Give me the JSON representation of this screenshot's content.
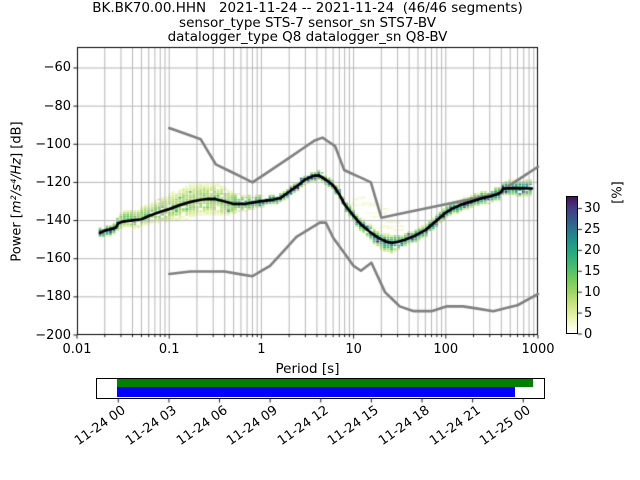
{
  "chart_data": {
    "type": "heatmap",
    "description": "Probabilistic power spectral density (PPSD) of seismic channel, histogram colored by probability percentage, with Peterson NHNM/NLNM noise model curves and mode line, plus data coverage timeline",
    "title": "BK.BK70.00.HHN   2021-11-24 -- 2021-11-24  (46/46 segments)",
    "subtitle_lines": [
      "sensor_type STS-7 sensor_sn STS7-BV",
      "datalogger_type Q8 datalogger_sn Q8-BV"
    ],
    "xlabel": "Period [s]",
    "ylabel_parts": [
      "Power [",
      "m²/s⁴/Hz",
      "] [dB]"
    ],
    "xscale": "log",
    "xlim": [
      0.01,
      1000
    ],
    "ylim": [
      -200,
      -49
    ],
    "grid": true,
    "xtick_values": [
      0.01,
      0.1,
      1,
      10,
      100,
      1000
    ],
    "xtick_labels": [
      "0.01",
      "0.1",
      "1",
      "10",
      "100",
      "1000"
    ],
    "ytick_values": [
      -60,
      -80,
      -100,
      -120,
      -140,
      -160,
      -180,
      -200
    ],
    "ytick_labels": [
      "−60",
      "−80",
      "−100",
      "−120",
      "−140",
      "−160",
      "−180",
      "−200"
    ],
    "colorbar": {
      "unit_label": "[%]",
      "tick_values": [
        0,
        5,
        10,
        15,
        20,
        25,
        30
      ],
      "tick_labels": [
        "0",
        "5",
        "10",
        "15",
        "20",
        "25",
        "30"
      ],
      "vmin": 0,
      "vmax": 33,
      "gradient_stops": [
        {
          "t": 0.0,
          "c": "#ffffff"
        },
        {
          "t": 0.05,
          "c": "#f8fbdd"
        },
        {
          "t": 0.12,
          "c": "#e7f3ab"
        },
        {
          "t": 0.2,
          "c": "#cbe687"
        },
        {
          "t": 0.3,
          "c": "#9fd566"
        },
        {
          "t": 0.4,
          "c": "#6ecb5c"
        },
        {
          "t": 0.5,
          "c": "#41bb72"
        },
        {
          "t": 0.6,
          "c": "#26a784"
        },
        {
          "t": 0.68,
          "c": "#21918c"
        },
        {
          "t": 0.76,
          "c": "#2b758e"
        },
        {
          "t": 0.84,
          "c": "#35588c"
        },
        {
          "t": 0.92,
          "c": "#433a83"
        },
        {
          "t": 1.0,
          "c": "#46115b"
        }
      ]
    },
    "series": {
      "mode_line": {
        "name": "PSD mode",
        "color": "#000000",
        "points": [
          [
            0.0178,
            -146.4
          ],
          [
            0.02,
            -145.3
          ],
          [
            0.0225,
            -144.7
          ],
          [
            0.025,
            -144.1
          ],
          [
            0.0265,
            -143.6
          ],
          [
            0.028,
            -141.4
          ],
          [
            0.031,
            -140.6
          ],
          [
            0.04,
            -139.9
          ],
          [
            0.05,
            -139.3
          ],
          [
            0.06,
            -137.6
          ],
          [
            0.08,
            -135.4
          ],
          [
            0.1,
            -134.0
          ],
          [
            0.13,
            -131.9
          ],
          [
            0.17,
            -130.2
          ],
          [
            0.22,
            -129.1
          ],
          [
            0.27,
            -128.6
          ],
          [
            0.32,
            -128.8
          ],
          [
            0.4,
            -130.0
          ],
          [
            0.5,
            -131.3
          ],
          [
            0.65,
            -131.3
          ],
          [
            0.8,
            -130.6
          ],
          [
            1.0,
            -129.8
          ],
          [
            1.3,
            -129.2
          ],
          [
            1.6,
            -128.2
          ],
          [
            2.0,
            -124.9
          ],
          [
            2.5,
            -121.5
          ],
          [
            3.0,
            -118.4
          ],
          [
            3.6,
            -116.7
          ],
          [
            4.2,
            -116.3
          ],
          [
            5.0,
            -118.6
          ],
          [
            6.0,
            -121.5
          ],
          [
            7.0,
            -126.3
          ],
          [
            8.0,
            -131.6
          ],
          [
            10.0,
            -137.6
          ],
          [
            12.0,
            -142.0
          ],
          [
            15.0,
            -145.9
          ],
          [
            18.0,
            -148.7
          ],
          [
            22.0,
            -150.9
          ],
          [
            26.0,
            -151.7
          ],
          [
            30.0,
            -151.2
          ],
          [
            36.0,
            -150.1
          ],
          [
            45.0,
            -148.2
          ],
          [
            60.0,
            -145.0
          ],
          [
            80.0,
            -139.9
          ],
          [
            100.0,
            -135.8
          ],
          [
            120.0,
            -133.5
          ],
          [
            150.0,
            -131.5
          ],
          [
            200.0,
            -129.7
          ],
          [
            250.0,
            -128.2
          ],
          [
            300.0,
            -127.4
          ],
          [
            360.0,
            -126.2
          ],
          [
            400.0,
            -125.1
          ],
          [
            418.0,
            -123.3
          ],
          [
            500.0,
            -123.1
          ],
          [
            600.0,
            -123.0
          ],
          [
            700.0,
            -123.1
          ],
          [
            860.0,
            -123.2
          ]
        ]
      },
      "nhnm": {
        "name": "Peterson New High Noise Model",
        "color": "#808080",
        "points": [
          [
            0.1,
            -91.5
          ],
          [
            0.15,
            -94.5
          ],
          [
            0.22,
            -97.4
          ],
          [
            0.26,
            -103.3
          ],
          [
            0.32,
            -110.5
          ],
          [
            0.45,
            -114.0
          ],
          [
            0.6,
            -117.0
          ],
          [
            0.8,
            -120.0
          ],
          [
            1.2,
            -114.3
          ],
          [
            2.0,
            -107.1
          ],
          [
            3.0,
            -101.3
          ],
          [
            3.8,
            -98.0
          ],
          [
            4.6,
            -96.5
          ],
          [
            5.4,
            -98.8
          ],
          [
            6.3,
            -101.0
          ],
          [
            7.0,
            -106.8
          ],
          [
            7.9,
            -113.5
          ],
          [
            9.0,
            -114.8
          ],
          [
            11.0,
            -116.7
          ],
          [
            13.0,
            -118.3
          ],
          [
            15.4,
            -120.0
          ],
          [
            17.0,
            -127.0
          ],
          [
            20.0,
            -138.5
          ],
          [
            30.0,
            -136.7
          ],
          [
            50.0,
            -134.5
          ],
          [
            100.0,
            -131.5
          ],
          [
            200.0,
            -128.5
          ],
          [
            354.8,
            -126.0
          ],
          [
            500.0,
            -121.3
          ],
          [
            700.0,
            -116.7
          ],
          [
            1000.0,
            -111.8
          ]
        ]
      },
      "nlnm": {
        "name": "Peterson New Low Noise Model",
        "color": "#808080",
        "points": [
          [
            0.1,
            -168.0
          ],
          [
            0.17,
            -166.7
          ],
          [
            0.4,
            -166.7
          ],
          [
            0.6,
            -168.2
          ],
          [
            0.8,
            -169.2
          ],
          [
            1.0,
            -166.4
          ],
          [
            1.24,
            -163.7
          ],
          [
            1.7,
            -156.5
          ],
          [
            2.4,
            -148.6
          ],
          [
            3.2,
            -144.9
          ],
          [
            4.3,
            -141.1
          ],
          [
            5.0,
            -141.1
          ],
          [
            6.0,
            -149.0
          ],
          [
            8.0,
            -157.3
          ],
          [
            10.0,
            -163.8
          ],
          [
            12.0,
            -166.3
          ],
          [
            15.6,
            -162.1
          ],
          [
            18.0,
            -168.6
          ],
          [
            21.9,
            -177.5
          ],
          [
            26.0,
            -181.0
          ],
          [
            31.6,
            -185.0
          ],
          [
            45.0,
            -187.5
          ],
          [
            70.0,
            -187.5
          ],
          [
            101.0,
            -185.0
          ],
          [
            154.0,
            -185.0
          ],
          [
            230.0,
            -186.3
          ],
          [
            328.0,
            -187.5
          ],
          [
            450.0,
            -185.9
          ],
          [
            600.0,
            -184.4
          ],
          [
            800.0,
            -181.1
          ],
          [
            1000.0,
            -178.5
          ]
        ]
      }
    },
    "histogram": {
      "bins_per_octave": 8,
      "period_min": 0.0178,
      "period_max": 860,
      "db_bin_width": 1,
      "percent_max": 33,
      "spread_up": [
        [
          0.0178,
          2.0
        ],
        [
          0.025,
          2.2
        ],
        [
          0.03,
          5.0
        ],
        [
          0.06,
          6.0
        ],
        [
          0.09,
          7.5
        ],
        [
          0.15,
          8.8
        ],
        [
          0.35,
          8.5
        ],
        [
          0.6,
          4.5
        ],
        [
          0.9,
          3.0
        ],
        [
          1.5,
          2.2
        ],
        [
          2.5,
          2.2
        ],
        [
          5.0,
          2.4
        ],
        [
          8.0,
          2.6
        ],
        [
          12.0,
          3.0
        ],
        [
          18.0,
          3.5
        ],
        [
          25.0,
          4.0
        ],
        [
          34.0,
          3.0
        ],
        [
          60.0,
          2.8
        ],
        [
          150.0,
          2.8
        ],
        [
          300.0,
          3.2
        ],
        [
          500.0,
          3.8
        ],
        [
          860.0,
          4.5
        ]
      ],
      "spread_down": [
        [
          0.0178,
          2.5
        ],
        [
          0.025,
          3.0
        ],
        [
          0.03,
          3.5
        ],
        [
          0.06,
          4.0
        ],
        [
          0.09,
          6.0
        ],
        [
          0.15,
          8.0
        ],
        [
          0.35,
          8.0
        ],
        [
          0.6,
          4.0
        ],
        [
          0.9,
          3.0
        ],
        [
          1.5,
          2.2
        ],
        [
          2.5,
          2.2
        ],
        [
          5.0,
          2.4
        ],
        [
          8.0,
          2.6
        ],
        [
          12.0,
          3.0
        ],
        [
          18.0,
          4.5
        ],
        [
          25.0,
          5.5
        ],
        [
          34.0,
          3.5
        ],
        [
          60.0,
          3.0
        ],
        [
          150.0,
          3.0
        ],
        [
          300.0,
          3.2
        ],
        [
          500.0,
          3.6
        ],
        [
          860.0,
          4.0
        ]
      ],
      "peak_percent": [
        [
          0.0178,
          30
        ],
        [
          0.025,
          26
        ],
        [
          0.03,
          15
        ],
        [
          0.06,
          13
        ],
        [
          0.09,
          11
        ],
        [
          0.15,
          10.5
        ],
        [
          0.35,
          10
        ],
        [
          0.6,
          16
        ],
        [
          0.9,
          20
        ],
        [
          1.5,
          26
        ],
        [
          2.5,
          30
        ],
        [
          4.0,
          31
        ],
        [
          6.0,
          28
        ],
        [
          10.0,
          26
        ],
        [
          16.0,
          23
        ],
        [
          25.0,
          21
        ],
        [
          34.0,
          24
        ],
        [
          60.0,
          25
        ],
        [
          150.0,
          25
        ],
        [
          300.0,
          24
        ],
        [
          500.0,
          23
        ],
        [
          860.0,
          21
        ]
      ],
      "wisp_region": [
        5.5,
        34
      ],
      "wisp_top_db": [
        [
          5.5,
          -118.5
        ],
        [
          8.0,
          -123.5
        ],
        [
          12.0,
          -128.0
        ],
        [
          20.0,
          -131.5
        ],
        [
          34.0,
          -139.5
        ]
      ]
    },
    "timeline": {
      "axis_hours": [
        -1.28,
        25.29
      ],
      "tick_hours": [
        0,
        3,
        6,
        9,
        12,
        15,
        18,
        21,
        24
      ],
      "tick_labels": [
        "11-24 00",
        "11-24 03",
        "11-24 06",
        "11-24 09",
        "11-24 12",
        "11-24 15",
        "11-24 18",
        "11-24 21",
        "11-25 00"
      ],
      "bars": [
        {
          "name": "data-coverage-all",
          "color": "#008000",
          "start_hour": -0.08,
          "end_hour": 24.58
        },
        {
          "name": "data-coverage-used",
          "color": "#0000ff",
          "start_hour": -0.08,
          "end_hour": 23.54
        }
      ]
    }
  }
}
